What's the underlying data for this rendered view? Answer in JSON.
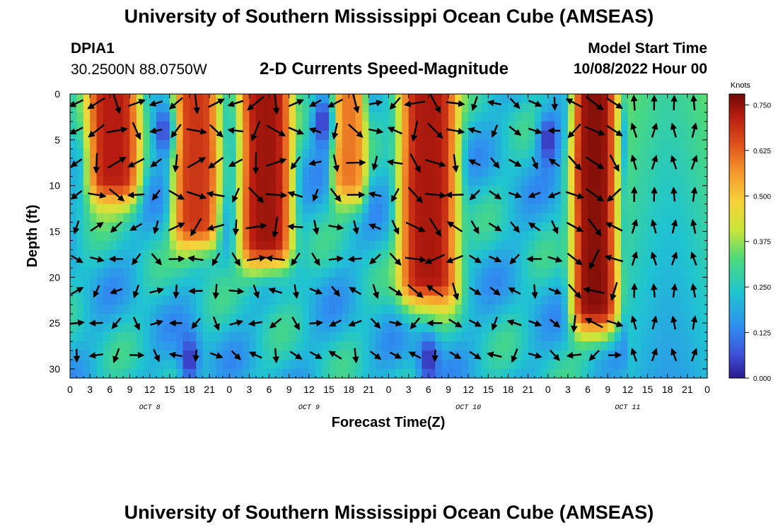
{
  "header": {
    "title": "University of Southern Mississippi Ocean Cube (AMSEAS)",
    "station": "DPIA1",
    "coords": "30.2500N  88.0750W",
    "subtitle": "2-D Currents Speed-Magnitude",
    "model_label": "Model Start Time",
    "model_time": "10/08/2022 Hour 00"
  },
  "footer": {
    "title": "University of Southern Mississippi Ocean Cube (AMSEAS)"
  },
  "chart_data": {
    "type": "heatmap",
    "title": "2-D Currents Speed-Magnitude",
    "xlabel": "Forecast Time(Z)",
    "ylabel": "Depth (ft)",
    "x_range_hours": [
      0,
      96
    ],
    "y_range_ft": [
      0,
      31
    ],
    "x_tick_labels": [
      "0",
      "3",
      "6",
      "9",
      "12",
      "15",
      "18",
      "21",
      "0",
      "3",
      "6",
      "9",
      "12",
      "15",
      "18",
      "21",
      "0",
      "3",
      "6",
      "9",
      "12",
      "15",
      "18",
      "21",
      "0",
      "3",
      "6",
      "9",
      "12",
      "15",
      "18",
      "21",
      "0"
    ],
    "y_ticks": [
      0,
      5,
      10,
      15,
      20,
      25,
      30
    ],
    "day_labels": [
      {
        "text": "OCT 8",
        "hour": 12
      },
      {
        "text": "OCT 9",
        "hour": 36
      },
      {
        "text": "OCT 10",
        "hour": 60
      },
      {
        "text": "OCT 11",
        "hour": 84
      }
    ],
    "colorbar": {
      "label": "Knots",
      "range": [
        0,
        0.78
      ],
      "ticks": [
        "0.750",
        "0.625",
        "0.500",
        "0.375",
        "0.250",
        "0.125",
        "0.000"
      ],
      "tick_values": [
        0.75,
        0.625,
        0.5,
        0.375,
        0.25,
        0.125,
        0.0
      ]
    },
    "high_speed_bands": [
      {
        "hour_start": 3,
        "hour_end": 10,
        "depth_max": 9,
        "peak": 0.72
      },
      {
        "hour_start": 16,
        "hour_end": 22,
        "depth_max": 14,
        "peak": 0.68
      },
      {
        "hour_start": 26,
        "hour_end": 33,
        "depth_max": 16,
        "peak": 0.74
      },
      {
        "hour_start": 40,
        "hour_end": 44,
        "depth_max": 9,
        "peak": 0.6
      },
      {
        "hour_start": 50,
        "hour_end": 58,
        "depth_max": 20,
        "peak": 0.73
      },
      {
        "hour_start": 76,
        "hour_end": 82,
        "depth_max": 23,
        "peak": 0.76
      }
    ],
    "low_speed_spots": [
      {
        "hour": 14,
        "depth": 4,
        "value": 0.05
      },
      {
        "hour": 18,
        "depth": 29,
        "value": 0.02
      },
      {
        "hour": 38,
        "depth": 3,
        "value": 0.03
      },
      {
        "hour": 54,
        "depth": 29,
        "value": 0.02
      },
      {
        "hour": 72,
        "depth": 5,
        "value": 0.02
      }
    ],
    "vector_rows_ft": [
      1,
      4,
      7.5,
      11,
      14.5,
      18,
      21.5,
      25,
      28.5
    ],
    "vector_hours": [
      1,
      4,
      7,
      10,
      13,
      16,
      19,
      22,
      25,
      28,
      31,
      34,
      37,
      40,
      43,
      46,
      49,
      52,
      55,
      58,
      61,
      64,
      67,
      70,
      73,
      76,
      79,
      82,
      85,
      88,
      91,
      94
    ]
  }
}
